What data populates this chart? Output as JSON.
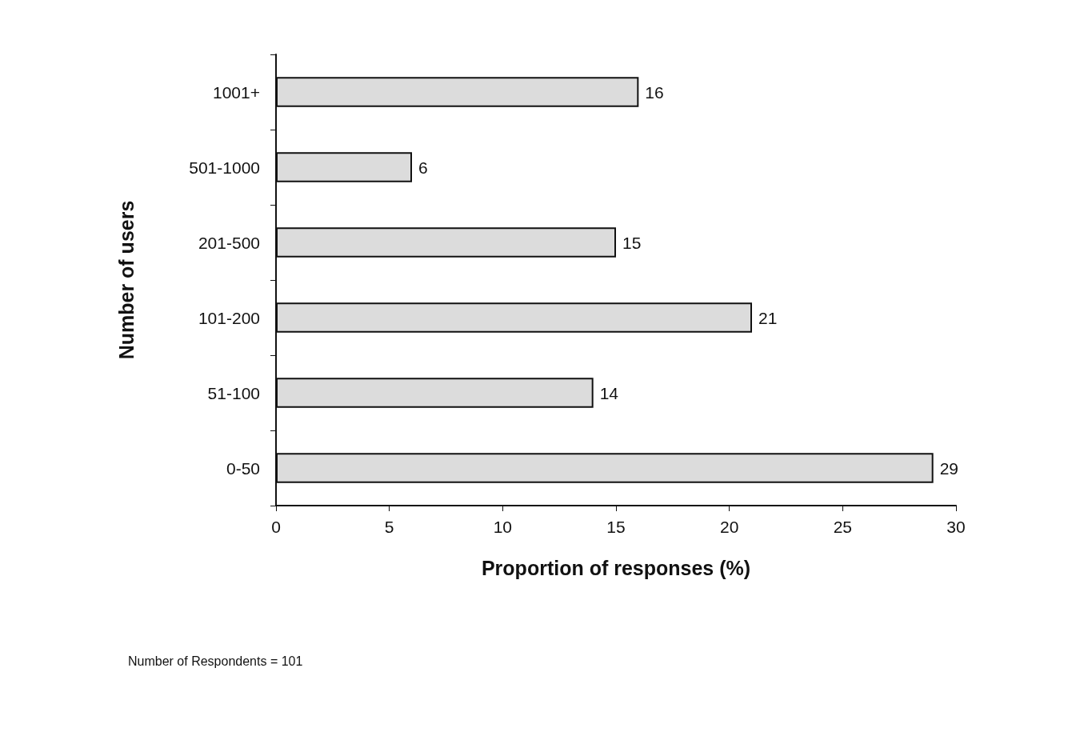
{
  "chart_data": {
    "type": "bar",
    "orientation": "horizontal",
    "xlabel": "Proportion of responses (%)",
    "ylabel": "Number of users",
    "categories": [
      "1001+",
      "501-1000",
      "201-500",
      "101-200",
      "51-100",
      "0-50"
    ],
    "values": [
      16,
      6,
      15,
      21,
      14,
      29
    ],
    "color": "#dcdcdc",
    "xlim": [
      0,
      30
    ],
    "xticks": [
      0,
      5,
      10,
      15,
      20,
      25,
      30
    ],
    "grid": false,
    "data_labels": true,
    "annotations": [
      "Number of Respondents = 101"
    ]
  }
}
